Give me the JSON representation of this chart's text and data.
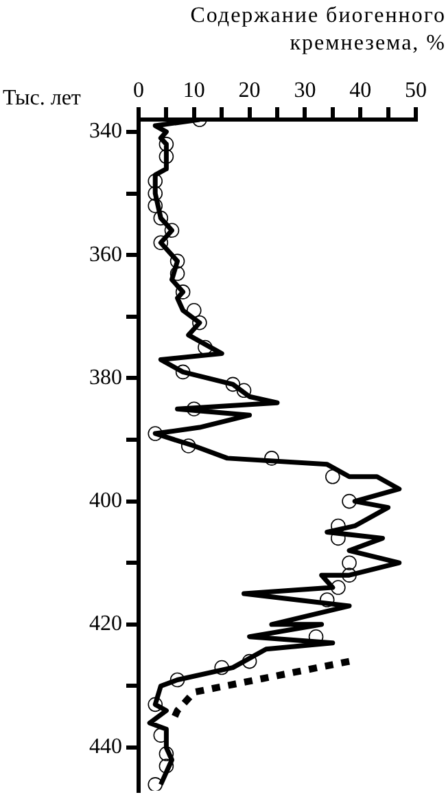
{
  "chart_data": {
    "type": "line",
    "xlabel": "Содержание биогенного кремнезема, %",
    "ylabel": "Тыс. лет",
    "xlim": [
      0,
      50
    ],
    "xticks": [
      0,
      {
        "value": 5,
        "label": null
      },
      10,
      {
        "value": 15,
        "label": null
      },
      20,
      {
        "value": 25,
        "label": null
      },
      30,
      {
        "value": 35,
        "label": null
      },
      40,
      {
        "value": 45,
        "label": null
      },
      50
    ],
    "ylim": [
      447,
      338
    ],
    "yticks": [
      340,
      {
        "value": 350,
        "label": null
      },
      360,
      {
        "value": 370,
        "label": null
      },
      380,
      {
        "value": 390,
        "label": null
      },
      400,
      {
        "value": 410,
        "label": null
      },
      420,
      {
        "value": 430,
        "label": null
      },
      440
    ],
    "grid": false,
    "legend": false,
    "series": [
      {
        "color": "#000000",
        "marker": "none",
        "line_style": "solid",
        "x": [
          11,
          3,
          5,
          4,
          5,
          5,
          3,
          3,
          4,
          6,
          4,
          7,
          6,
          8,
          7,
          8,
          11,
          9,
          13,
          15,
          4,
          8,
          17,
          20,
          25,
          7,
          20,
          11,
          3,
          10,
          16,
          34,
          38,
          43,
          47,
          39,
          45,
          39,
          34,
          44,
          38,
          47,
          38,
          33,
          35,
          19,
          38,
          24,
          33,
          20,
          35,
          23,
          17,
          7,
          4,
          3,
          5,
          2,
          5,
          5,
          6,
          4
        ],
        "values": [
          338,
          339,
          340,
          341,
          342,
          346,
          347,
          350,
          354,
          356,
          358,
          361,
          364,
          366,
          367,
          369,
          371,
          373,
          375,
          376,
          377,
          379,
          381,
          383,
          384,
          385,
          386,
          388,
          389,
          391,
          393,
          394,
          396,
          396,
          398,
          400,
          401,
          404,
          405,
          406,
          408,
          410,
          412,
          412,
          414,
          415,
          417,
          420,
          420,
          422,
          423,
          424,
          427,
          429,
          430,
          433,
          434,
          436,
          437,
          440,
          442,
          446
        ]
      },
      {
        "color": "#000000",
        "marker": "none",
        "line_style": "dotted",
        "x": [
          38,
          10,
          7,
          6
        ],
        "values": [
          426,
          431,
          434,
          436
        ]
      },
      {
        "type": "scatter",
        "color": "#000000",
        "marker": "circle",
        "x": [
          11,
          5,
          5,
          3,
          3,
          3,
          4,
          6,
          4,
          7,
          7,
          8,
          10,
          11,
          12,
          8,
          17,
          19,
          10,
          3,
          9,
          24,
          35,
          38,
          36,
          36,
          38,
          38,
          36,
          34,
          32,
          20,
          15,
          7,
          3,
          4,
          5,
          5,
          3
        ],
        "values": [
          338,
          342,
          344,
          348,
          350,
          352,
          354,
          356,
          358,
          361,
          363,
          366,
          369,
          371,
          375,
          379,
          381,
          382,
          385,
          389,
          391,
          393,
          396,
          400,
          404,
          406,
          410,
          412,
          414,
          416,
          422,
          426,
          427,
          429,
          433,
          438,
          441,
          443,
          446
        ]
      }
    ]
  }
}
